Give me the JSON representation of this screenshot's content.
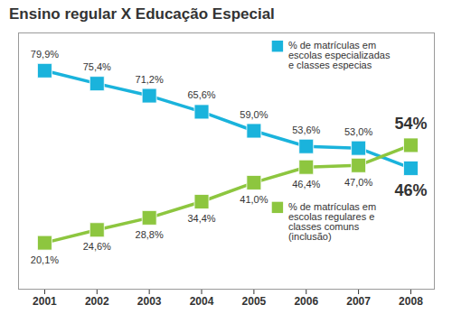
{
  "chart_data": {
    "type": "line",
    "title": "Ensino regular X Educação Especial",
    "x": [
      2001,
      2002,
      2003,
      2004,
      2005,
      2006,
      2007,
      2008
    ],
    "xlim": [
      2000.5,
      2008.45
    ],
    "xticks": [
      2001,
      2002,
      2003,
      2004,
      2005,
      2006,
      2007,
      2008
    ],
    "ylim": [
      4,
      93
    ],
    "tick_labels": "x",
    "data_labels": true,
    "legend": "right",
    "series": [
      {
        "name": "% de matrículas em escolas especializadas e classes especias",
        "color": "#1ab3dc",
        "marker": "square",
        "values": [
          79.9,
          75.4,
          71.2,
          65.6,
          59.0,
          53.6,
          53.0,
          46
        ],
        "value_labels": [
          "79,9%",
          "75,4%",
          "71,2%",
          "65,6%",
          "59,0%",
          "53,6%",
          "53,0%",
          "46%"
        ]
      },
      {
        "name": "% de matrículas em escolas regulares e classes comuns (inclusão)",
        "color": "#8dc63f",
        "marker": "square",
        "values": [
          20.1,
          24.6,
          28.8,
          34.4,
          41.0,
          46.4,
          47.0,
          54
        ],
        "value_labels": [
          "20,1%",
          "24,6%",
          "28,8%",
          "34,4%",
          "41,0%",
          "46,4%",
          "47,0%",
          "54%"
        ]
      }
    ]
  }
}
